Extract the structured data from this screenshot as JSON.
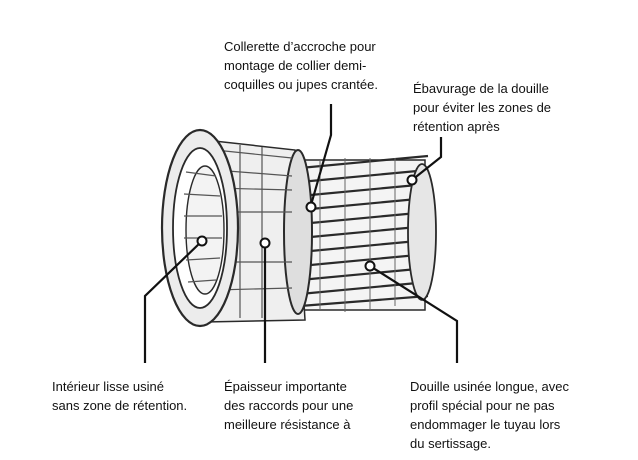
{
  "callouts": {
    "collar": "Collerette d’accroche pour\nmontage de collier demi-\ncoquilles ou jupes crantée.",
    "deburr": "Ébavurage de la douille\npour éviter les zones de\nrétention après",
    "interior": "Intérieur lisse usiné\nsans zone de rétention.",
    "thickness": "Épaisseur importante\ndes raccords pour une\nmeilleure résistance à",
    "bushing": "Douille usinée longue, avec\nprofil spécial pour ne pas\nendommager le tuyau lors\ndu sertissage."
  },
  "colors": {
    "ink": "#111111",
    "sketch": "#2a2a2a"
  }
}
